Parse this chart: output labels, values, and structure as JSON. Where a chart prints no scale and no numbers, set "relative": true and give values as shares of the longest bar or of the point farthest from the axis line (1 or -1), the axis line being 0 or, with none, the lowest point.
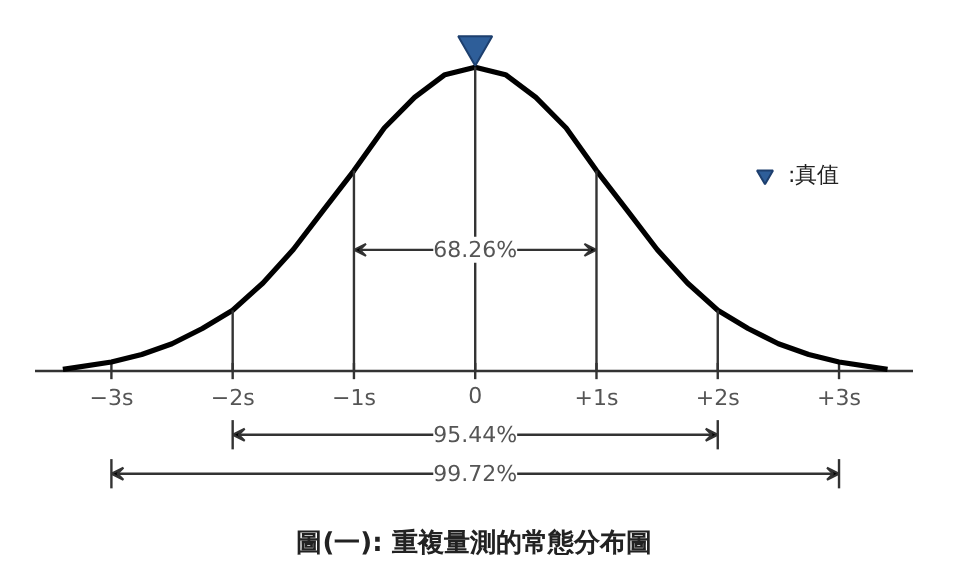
{
  "chart_data": {
    "type": "line",
    "title": "圖(一): 重複量測的常態分布圖",
    "relative": true,
    "xlim": [
      -3.63,
      3.61
    ],
    "xticks": [
      {
        "value": -3,
        "label": "−3s"
      },
      {
        "value": -2,
        "label": "−2s"
      },
      {
        "value": -1,
        "label": "−1s"
      },
      0,
      {
        "value": 1,
        "label": "+1s"
      },
      {
        "value": 2,
        "label": "+2s"
      },
      {
        "value": 3,
        "label": "+3s"
      }
    ],
    "series": [
      {
        "color": "#000000",
        "x": [
          -3.4,
          -3,
          -2.75,
          -2.5,
          -2.25,
          -2,
          -1.75,
          -1.5,
          -1.25,
          -1,
          -0.75,
          -0.5,
          -0.25,
          0,
          0.25,
          0.5,
          0.75,
          1,
          1.25,
          1.5,
          1.75,
          2,
          2.25,
          2.5,
          2.75,
          3,
          3.4
        ],
        "values": [
          0.005,
          0.028,
          0.051,
          0.084,
          0.131,
          0.187,
          0.271,
          0.374,
          0.496,
          0.617,
          0.748,
          0.842,
          0.912,
          0.935,
          0.912,
          0.842,
          0.748,
          0.617,
          0.496,
          0.374,
          0.271,
          0.187,
          0.131,
          0.084,
          0.051,
          0.028,
          0.005
        ]
      },
      {
        "type": "scatter",
        "name": ":真值",
        "color": "#2e5e99",
        "marker": "triangle",
        "x": [
          0
        ],
        "values": [
          1
        ]
      }
    ],
    "ref_lines": [
      {
        "axis": "x",
        "value": -2
      },
      {
        "axis": "x",
        "value": -1
      },
      {
        "axis": "x",
        "value": 0
      },
      {
        "axis": "x",
        "value": 1
      },
      {
        "axis": "x",
        "value": 2
      }
    ],
    "annotations": [
      "68.26%",
      "95.44%",
      "99.72%"
    ],
    "legend": "top right",
    "grid": false
  }
}
